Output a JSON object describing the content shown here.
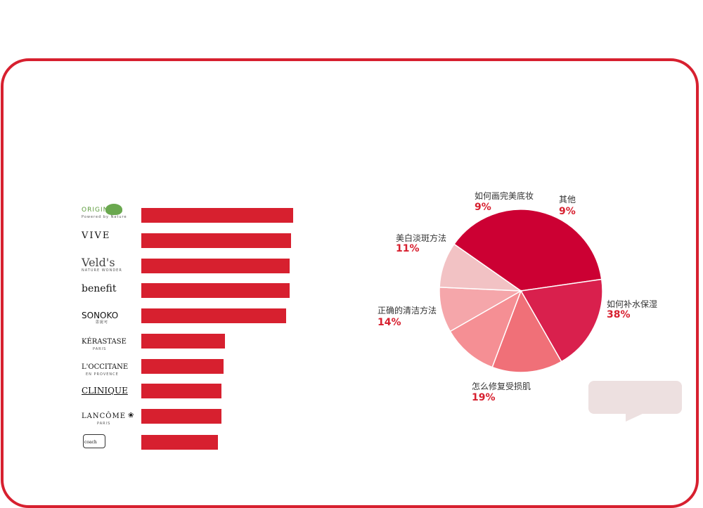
{
  "chart_data": [
    {
      "type": "bar",
      "orientation": "horizontal",
      "categories": [
        "ORIGINS",
        "VIVE",
        "Veld's",
        "benefit",
        "SONOKO",
        "KÉRASTASE",
        "L'OCCITANE",
        "CLINIQUE",
        "LANCÔME",
        "coach"
      ],
      "values": [
        100,
        98.5,
        97.5,
        97.5,
        95.5,
        55,
        54,
        53,
        53,
        50.5
      ],
      "logo_sublines": [
        "Powered by Nature",
        "",
        "NATURE WONDER",
        "",
        "思妮可",
        "PARIS",
        "EN PROVENCE",
        "",
        "PARIS",
        ""
      ],
      "xlim": [
        0,
        100
      ],
      "color": "#d7202f"
    },
    {
      "type": "pie",
      "slices": [
        {
          "label": "如何补水保湿",
          "pct": "38%",
          "value": 38,
          "color": "#cc0033"
        },
        {
          "label": "怎么修复受损肌",
          "pct": "19%",
          "value": 19,
          "color": "#d9204d"
        },
        {
          "label": "正确的清洁方法",
          "pct": "14%",
          "value": 14,
          "color": "#f07078"
        },
        {
          "label": "美白淡斑方法",
          "pct": "11%",
          "value": 11,
          "color": "#f58f94"
        },
        {
          "label": "如何画完美底妆",
          "pct": "9%",
          "value": 9,
          "color": "#f5a6aa"
        },
        {
          "label": "其他",
          "pct": "9%",
          "value": 9,
          "color": "#f2c2c4"
        }
      ]
    }
  ],
  "colors": {
    "accent": "#d7202f",
    "bubble": "#ede0e0"
  }
}
